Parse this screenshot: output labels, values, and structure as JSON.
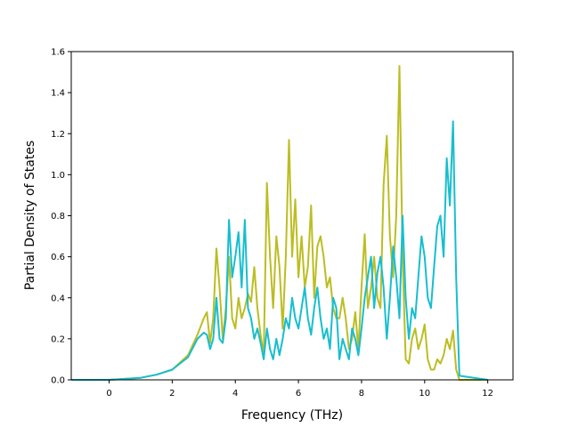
{
  "chart_data": {
    "type": "line",
    "title": "",
    "xlabel": "Frequency (THz)",
    "ylabel": "Partial Density of States",
    "xlim": [
      -1.2,
      12.8
    ],
    "ylim": [
      0,
      1.6
    ],
    "xticks": [
      0,
      2,
      4,
      6,
      8,
      10,
      12
    ],
    "yticks": [
      0.0,
      0.2,
      0.4,
      0.6,
      0.8,
      1.0,
      1.2,
      1.4,
      1.6
    ],
    "xtick_labels": [
      "0",
      "2",
      "4",
      "6",
      "8",
      "10",
      "12"
    ],
    "ytick_labels": [
      "0.0",
      "0.2",
      "0.4",
      "0.6",
      "0.8",
      "1.0",
      "1.2",
      "1.4",
      "1.6"
    ],
    "grid": false,
    "legend": "none",
    "series": [
      {
        "color": "#bcbd22",
        "x": [
          -1.2,
          0,
          1,
          1.5,
          2,
          2.5,
          2.8,
          3.0,
          3.1,
          3.2,
          3.3,
          3.4,
          3.5,
          3.6,
          3.7,
          3.8,
          3.9,
          4.0,
          4.1,
          4.2,
          4.3,
          4.4,
          4.5,
          4.6,
          4.7,
          4.8,
          4.9,
          5.0,
          5.1,
          5.2,
          5.3,
          5.4,
          5.5,
          5.6,
          5.7,
          5.8,
          5.9,
          6.0,
          6.1,
          6.2,
          6.3,
          6.4,
          6.5,
          6.6,
          6.7,
          6.8,
          6.9,
          7.0,
          7.1,
          7.2,
          7.3,
          7.4,
          7.5,
          7.6,
          7.7,
          7.8,
          7.9,
          8.0,
          8.1,
          8.2,
          8.3,
          8.4,
          8.5,
          8.6,
          8.7,
          8.8,
          8.9,
          9.0,
          9.1,
          9.2,
          9.3,
          9.4,
          9.5,
          9.6,
          9.7,
          9.8,
          9.9,
          10.0,
          10.1,
          10.2,
          10.3,
          10.4,
          10.5,
          10.6,
          10.7,
          10.8,
          10.9,
          11.0,
          11.1,
          12.0
        ],
        "y": [
          0,
          0,
          0.01,
          0.025,
          0.05,
          0.12,
          0.22,
          0.3,
          0.33,
          0.18,
          0.3,
          0.64,
          0.45,
          0.2,
          0.35,
          0.6,
          0.3,
          0.25,
          0.4,
          0.3,
          0.35,
          0.42,
          0.38,
          0.55,
          0.35,
          0.22,
          0.12,
          0.96,
          0.6,
          0.35,
          0.7,
          0.55,
          0.25,
          0.6,
          1.17,
          0.6,
          0.88,
          0.5,
          0.7,
          0.45,
          0.55,
          0.85,
          0.4,
          0.65,
          0.7,
          0.6,
          0.45,
          0.5,
          0.35,
          0.3,
          0.3,
          0.4,
          0.3,
          0.15,
          0.2,
          0.33,
          0.15,
          0.45,
          0.71,
          0.35,
          0.45,
          0.6,
          0.4,
          0.35,
          0.95,
          1.19,
          0.7,
          0.5,
          0.8,
          1.53,
          0.6,
          0.1,
          0.08,
          0.2,
          0.25,
          0.15,
          0.2,
          0.27,
          0.1,
          0.05,
          0.05,
          0.1,
          0.08,
          0.12,
          0.2,
          0.15,
          0.24,
          0.05,
          0,
          0
        ]
      },
      {
        "color": "#17becf",
        "x": [
          -1.2,
          0,
          1,
          1.5,
          2,
          2.5,
          2.8,
          3.0,
          3.1,
          3.2,
          3.3,
          3.4,
          3.5,
          3.6,
          3.7,
          3.8,
          3.9,
          4.0,
          4.1,
          4.2,
          4.3,
          4.4,
          4.5,
          4.6,
          4.7,
          4.8,
          4.9,
          5.0,
          5.1,
          5.2,
          5.3,
          5.4,
          5.5,
          5.6,
          5.7,
          5.8,
          5.9,
          6.0,
          6.1,
          6.2,
          6.3,
          6.4,
          6.5,
          6.6,
          6.7,
          6.8,
          6.9,
          7.0,
          7.1,
          7.2,
          7.3,
          7.4,
          7.5,
          7.6,
          7.7,
          7.8,
          7.9,
          8.0,
          8.1,
          8.2,
          8.3,
          8.4,
          8.5,
          8.6,
          8.7,
          8.8,
          8.9,
          9.0,
          9.1,
          9.2,
          9.3,
          9.4,
          9.5,
          9.6,
          9.7,
          9.8,
          9.9,
          10.0,
          10.1,
          10.2,
          10.3,
          10.4,
          10.5,
          10.6,
          10.7,
          10.8,
          10.9,
          11.0,
          11.1,
          12.0
        ],
        "y": [
          0,
          0,
          0.01,
          0.025,
          0.05,
          0.11,
          0.2,
          0.23,
          0.22,
          0.15,
          0.2,
          0.4,
          0.2,
          0.18,
          0.3,
          0.78,
          0.5,
          0.6,
          0.72,
          0.45,
          0.78,
          0.35,
          0.3,
          0.2,
          0.25,
          0.18,
          0.1,
          0.25,
          0.15,
          0.1,
          0.2,
          0.12,
          0.2,
          0.3,
          0.25,
          0.4,
          0.3,
          0.25,
          0.35,
          0.45,
          0.3,
          0.22,
          0.35,
          0.45,
          0.3,
          0.2,
          0.25,
          0.15,
          0.4,
          0.35,
          0.1,
          0.2,
          0.15,
          0.1,
          0.25,
          0.2,
          0.12,
          0.25,
          0.4,
          0.5,
          0.6,
          0.35,
          0.52,
          0.6,
          0.45,
          0.2,
          0.4,
          0.65,
          0.5,
          0.3,
          0.8,
          0.4,
          0.2,
          0.35,
          0.3,
          0.5,
          0.7,
          0.6,
          0.4,
          0.35,
          0.55,
          0.75,
          0.8,
          0.6,
          1.08,
          0.85,
          1.26,
          0.5,
          0.02,
          0
        ]
      }
    ]
  }
}
